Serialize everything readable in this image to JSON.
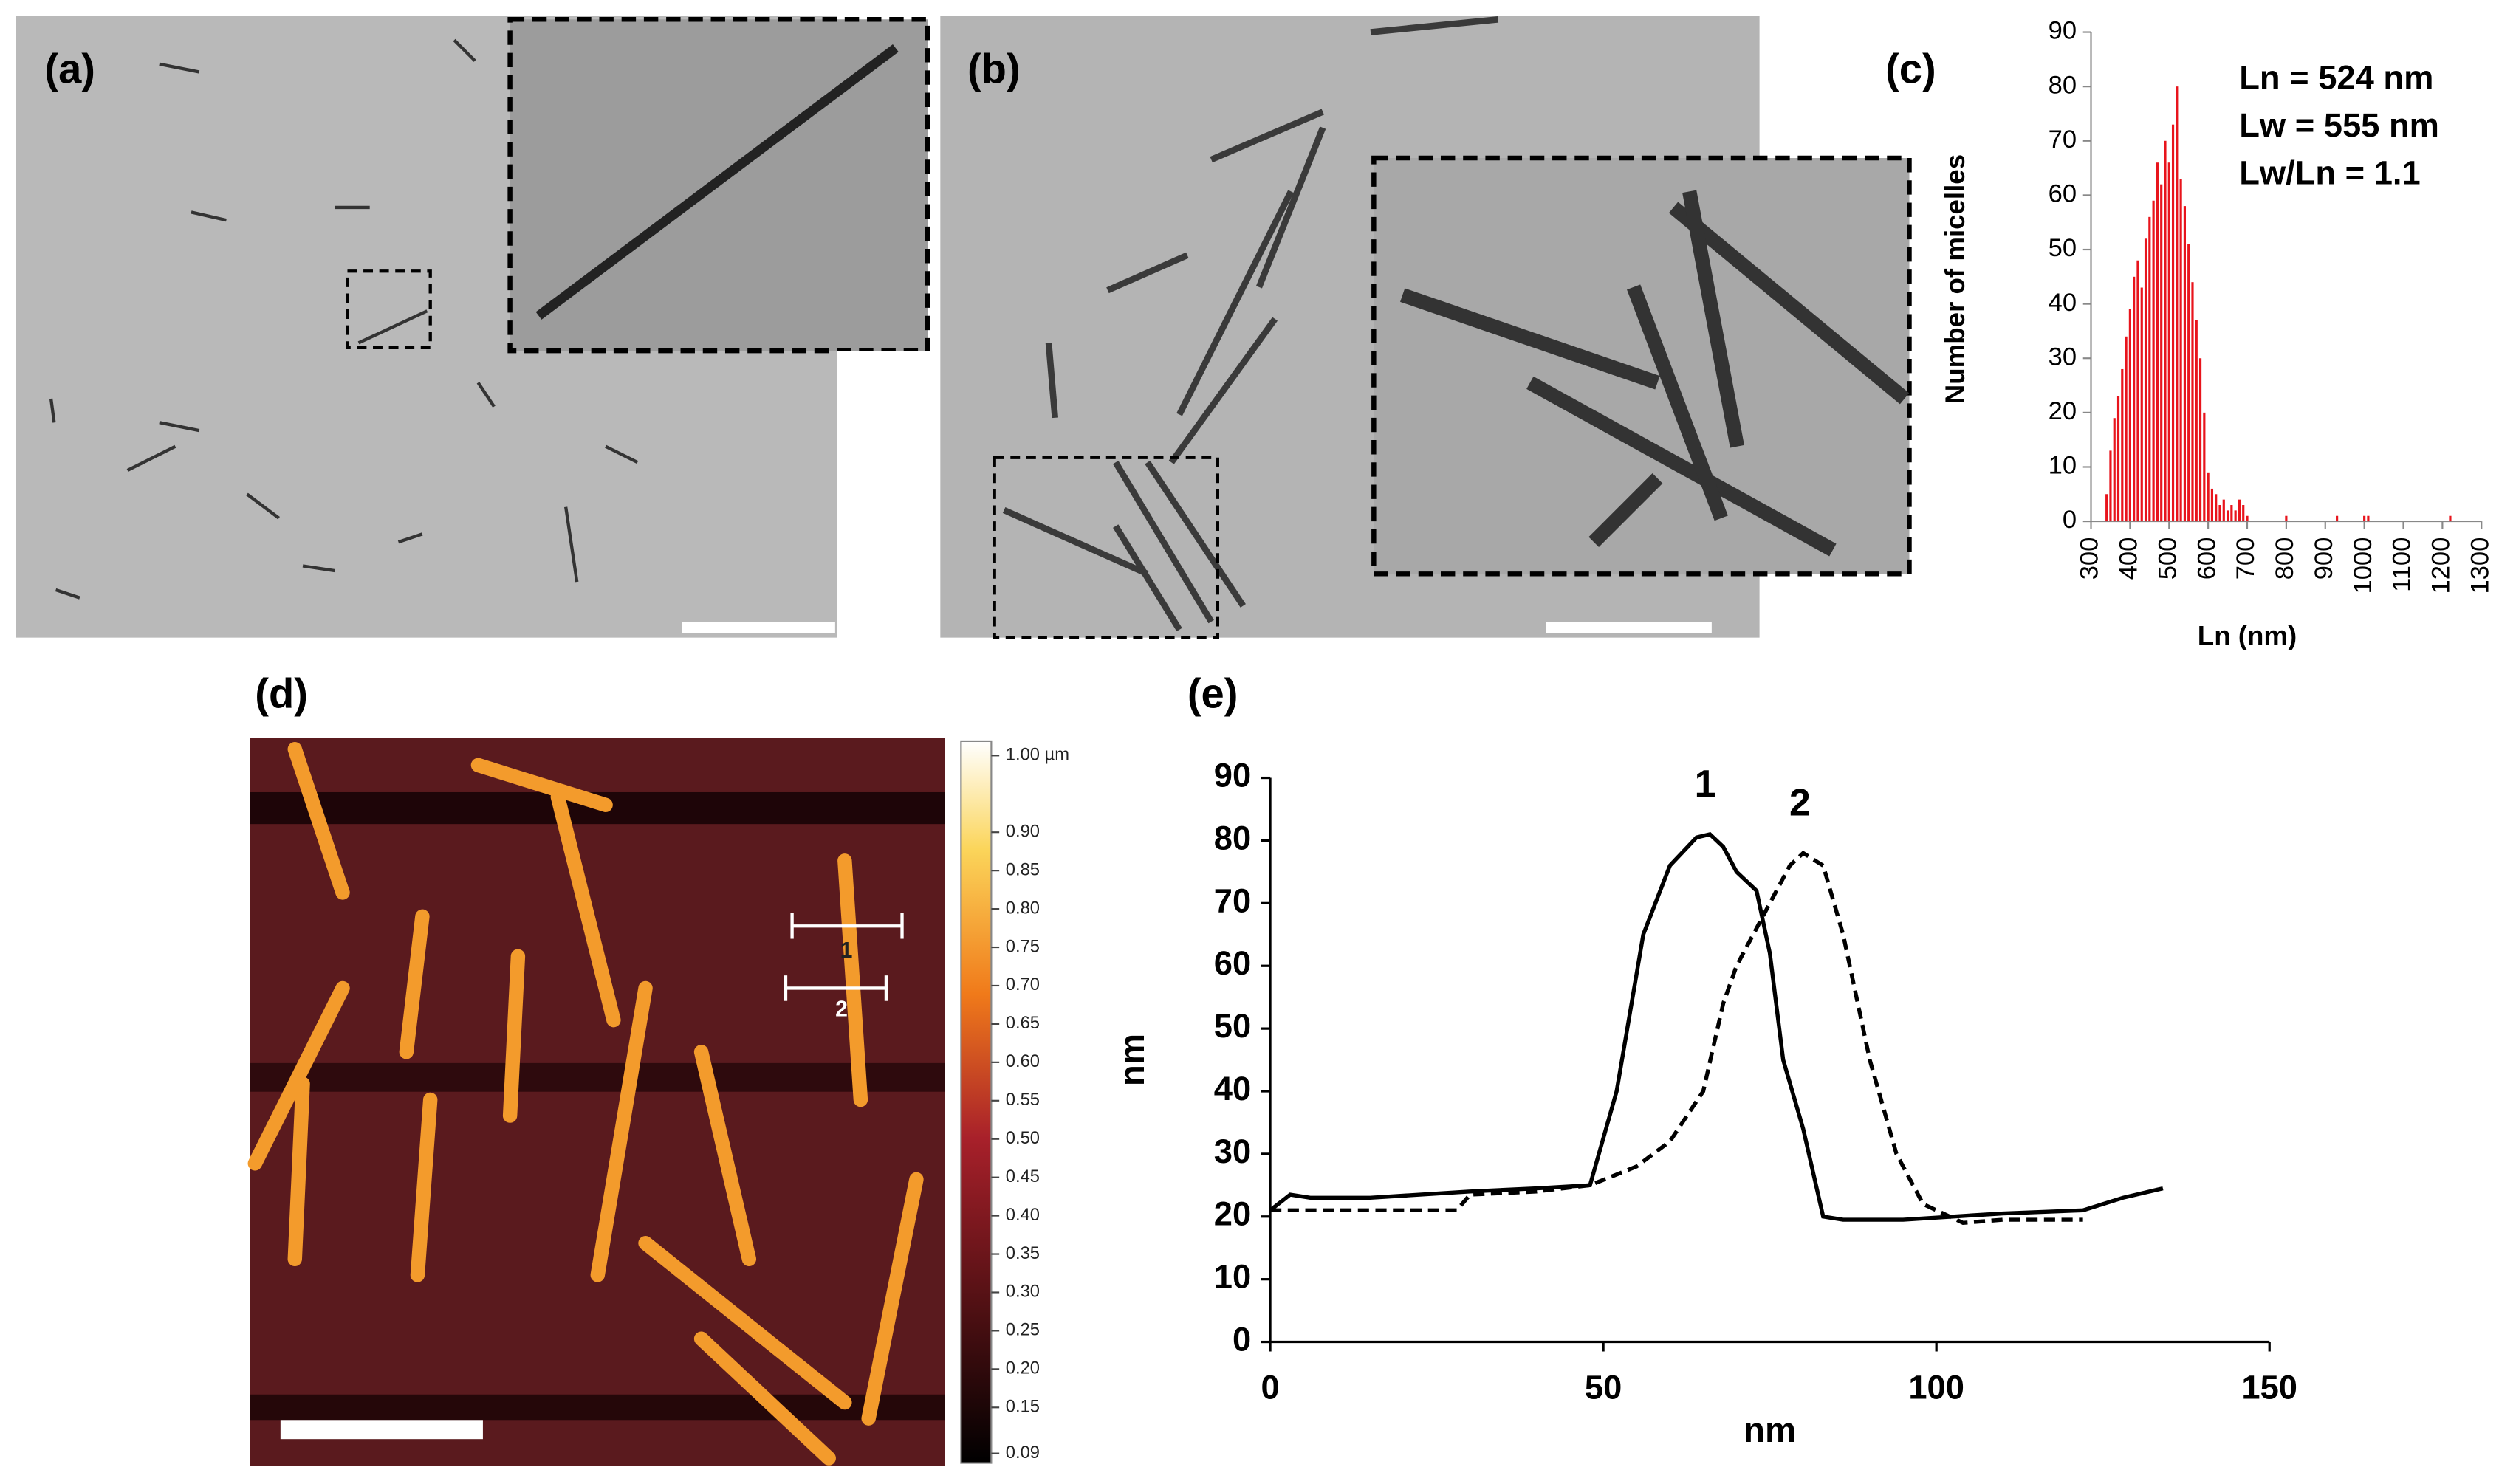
{
  "panel_labels": [
    "(a)",
    "(b)",
    "(c)",
    "(d)",
    "(e)"
  ],
  "colorbar": {
    "ticks": [
      {
        "value": 1.0,
        "label": "1.00 µm"
      },
      {
        "value": 0.9,
        "label": "0.90"
      },
      {
        "value": 0.85,
        "label": "0.85"
      },
      {
        "value": 0.8,
        "label": "0.80"
      },
      {
        "value": 0.75,
        "label": "0.75"
      },
      {
        "value": 0.7,
        "label": "0.70"
      },
      {
        "value": 0.65,
        "label": "0.65"
      },
      {
        "value": 0.6,
        "label": "0.60"
      },
      {
        "value": 0.55,
        "label": "0.55"
      },
      {
        "value": 0.5,
        "label": "0.50"
      },
      {
        "value": 0.45,
        "label": "0.45"
      },
      {
        "value": 0.4,
        "label": "0.40"
      },
      {
        "value": 0.35,
        "label": "0.35"
      },
      {
        "value": 0.3,
        "label": "0.30"
      },
      {
        "value": 0.25,
        "label": "0.25"
      },
      {
        "value": 0.2,
        "label": "0.20"
      },
      {
        "value": 0.15,
        "label": "0.15"
      },
      {
        "value": 0.09,
        "label": "0.09"
      }
    ]
  },
  "chart_data": [
    {
      "type": "bar",
      "color": "#e8141c",
      "x": [
        340,
        350,
        360,
        370,
        380,
        390,
        400,
        410,
        420,
        430,
        440,
        450,
        460,
        470,
        480,
        490,
        500,
        510,
        520,
        530,
        540,
        550,
        560,
        570,
        580,
        590,
        600,
        610,
        620,
        630,
        640,
        650,
        660,
        670,
        680,
        690,
        700,
        800,
        930,
        1000,
        1010,
        1220
      ],
      "values": [
        5,
        13,
        19,
        23,
        28,
        34,
        39,
        45,
        48,
        43,
        52,
        56,
        59,
        66,
        62,
        70,
        66,
        73,
        80,
        63,
        58,
        51,
        44,
        37,
        30,
        20,
        9,
        6,
        5,
        3,
        4,
        2,
        3,
        2,
        4,
        3,
        1,
        1,
        1,
        1,
        1,
        1
      ],
      "xlim": [
        300,
        1300
      ],
      "xticks": [
        300,
        400,
        500,
        600,
        700,
        800,
        900,
        1000,
        1100,
        1200,
        1300
      ],
      "ylim": [
        0,
        90
      ],
      "yticks": [
        0,
        10,
        20,
        30,
        40,
        50,
        60,
        70,
        80,
        90
      ],
      "xlabel": "Ln (nm)",
      "ylabel": "Number of micelles",
      "annotations": [
        "Ln = 524 nm",
        "Lw = 555 nm",
        "Lw/Ln = 1.1"
      ]
    },
    {
      "type": "line",
      "xlabel": "nm",
      "ylabel": "nm",
      "xlim": [
        0,
        150
      ],
      "xticks": [
        0,
        50,
        100,
        150
      ],
      "ylim": [
        0,
        90
      ],
      "yticks": [
        0,
        10,
        20,
        30,
        40,
        50,
        60,
        70,
        80,
        90
      ],
      "series": [
        {
          "name": "1",
          "color": "#000000",
          "dash": false,
          "x": [
            0,
            3,
            6,
            15,
            30,
            40,
            48,
            52,
            56,
            60,
            64,
            66,
            68,
            70,
            73,
            75,
            77,
            80,
            83,
            86,
            95,
            110,
            122,
            128,
            134
          ],
          "values": [
            21,
            23.5,
            23,
            23,
            24,
            24.5,
            25,
            40,
            65,
            76,
            80.5,
            81,
            79,
            75,
            72,
            62,
            45,
            34,
            20,
            19.5,
            19.5,
            20.5,
            21,
            23,
            24.5
          ]
        },
        {
          "name": "2",
          "color": "#000000",
          "dash": true,
          "x": [
            0,
            28,
            30,
            40,
            48,
            55,
            60,
            65,
            68,
            70,
            74,
            78,
            80,
            83,
            86,
            90,
            94,
            98,
            104,
            110,
            122
          ],
          "values": [
            21,
            21,
            23.5,
            24,
            25,
            28,
            32,
            40,
            54,
            60,
            68,
            76,
            78,
            76,
            65,
            45,
            30,
            22,
            19,
            19.5,
            19.5
          ]
        }
      ]
    }
  ]
}
